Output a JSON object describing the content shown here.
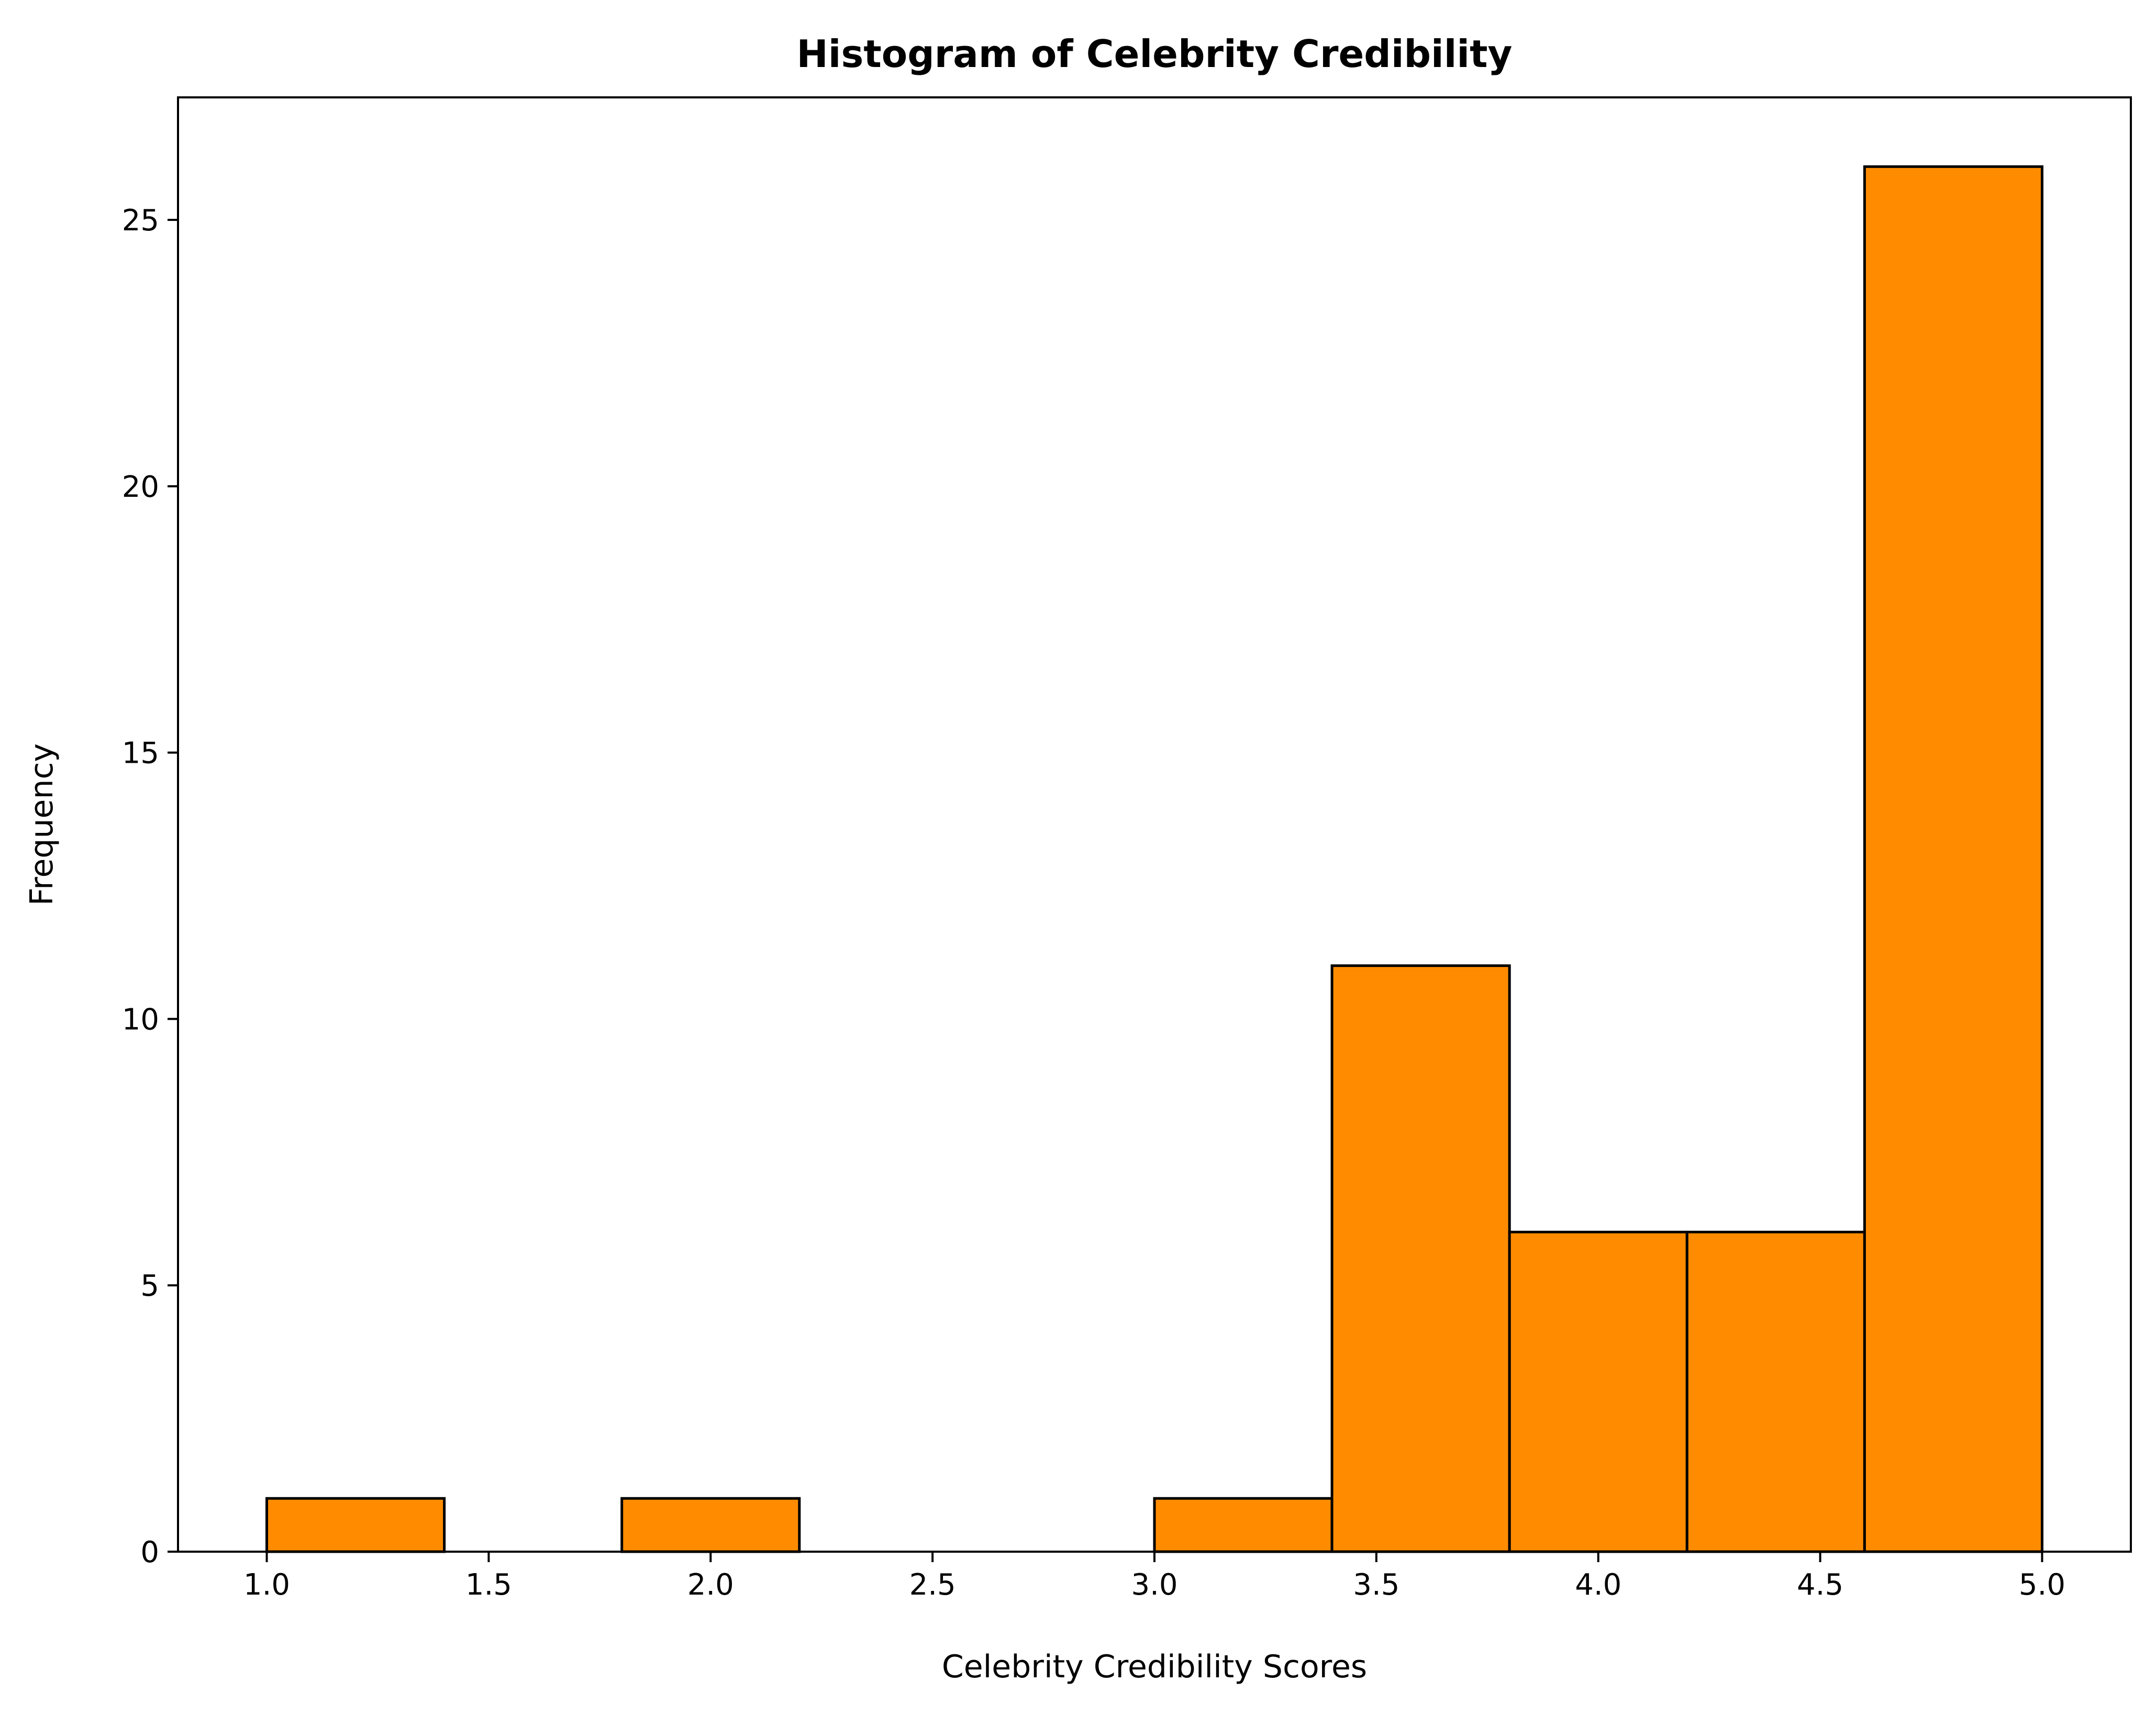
{
  "chart_data": {
    "type": "bar",
    "title": "Histogram of Celebrity Credibility",
    "xlabel": "Celebrity Credibility Scores",
    "ylabel": "Frequency",
    "xlim": [
      0.8,
      5.2
    ],
    "ylim": [
      0,
      27.3
    ],
    "bins": [
      {
        "x0": 1.0,
        "x1": 1.4,
        "count": 1
      },
      {
        "x0": 1.4,
        "x1": 1.8,
        "count": 0
      },
      {
        "x0": 1.8,
        "x1": 2.2,
        "count": 1
      },
      {
        "x0": 2.2,
        "x1": 2.6,
        "count": 0
      },
      {
        "x0": 2.6,
        "x1": 3.0,
        "count": 0
      },
      {
        "x0": 3.0,
        "x1": 3.4,
        "count": 1
      },
      {
        "x0": 3.4,
        "x1": 3.8,
        "count": 11
      },
      {
        "x0": 3.8,
        "x1": 4.2,
        "count": 6
      },
      {
        "x0": 4.2,
        "x1": 4.6,
        "count": 6
      },
      {
        "x0": 4.6,
        "x1": 5.0,
        "count": 26
      }
    ],
    "x_ticks": [
      {
        "value": 1.0,
        "label": "1.0"
      },
      {
        "value": 1.5,
        "label": "1.5"
      },
      {
        "value": 2.0,
        "label": "2.0"
      },
      {
        "value": 2.5,
        "label": "2.5"
      },
      {
        "value": 3.0,
        "label": "3.0"
      },
      {
        "value": 3.5,
        "label": "3.5"
      },
      {
        "value": 4.0,
        "label": "4.0"
      },
      {
        "value": 4.5,
        "label": "4.5"
      },
      {
        "value": 5.0,
        "label": "5.0"
      }
    ],
    "y_ticks": [
      {
        "value": 0,
        "label": "0"
      },
      {
        "value": 5,
        "label": "5"
      },
      {
        "value": 10,
        "label": "10"
      },
      {
        "value": 15,
        "label": "15"
      },
      {
        "value": 20,
        "label": "20"
      },
      {
        "value": 25,
        "label": "25"
      }
    ],
    "bar_color": "#ff8c00",
    "edge_color": "#000000",
    "grid": false,
    "legend": false
  }
}
